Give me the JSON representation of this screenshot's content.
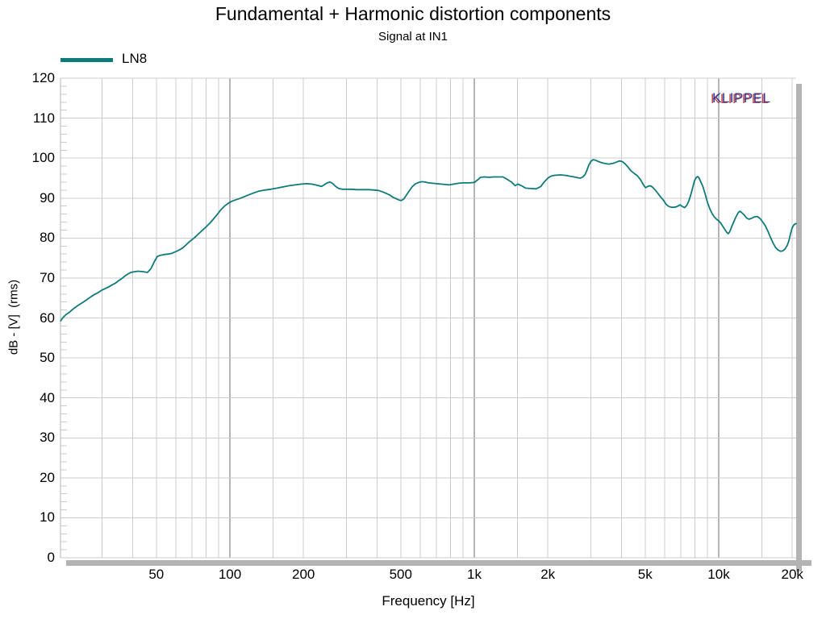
{
  "header": {
    "title": "Fundamental + Harmonic distortion components",
    "subtitle": "Signal at IN1"
  },
  "watermark": "KLIPPEL",
  "legend": {
    "items": [
      {
        "label": "LN8",
        "color": "#0e7b7b"
      }
    ]
  },
  "colors": {
    "series": "#0e7b7b",
    "grid_minor": "#cccccc",
    "grid_major_decade": "#b5b5b5",
    "axis_line": "#b5b5b5",
    "shadow_bar": "#b3b3b3",
    "watermark_blue": "#2b3a9c",
    "watermark_red": "#c43434",
    "text": "#000000"
  },
  "chart_data": {
    "type": "line",
    "title": "Fundamental + Harmonic distortion components",
    "subtitle": "Signal at IN1",
    "xlabel": "Frequency [Hz]",
    "ylabel": "dB - [V]  (rms)",
    "x_scale": "log",
    "xlim": [
      20.3,
      20750
    ],
    "ylim": [
      0,
      120
    ],
    "grid": true,
    "legend_position": "top-left",
    "y_major_ticks": [
      0,
      10,
      20,
      30,
      40,
      50,
      60,
      70,
      80,
      90,
      100,
      110,
      120
    ],
    "y_minor_step": 2,
    "x_labeled_ticks": [
      {
        "f": 50,
        "label": "50"
      },
      {
        "f": 100,
        "label": "100"
      },
      {
        "f": 200,
        "label": "200"
      },
      {
        "f": 500,
        "label": "500"
      },
      {
        "f": 1000,
        "label": "1k"
      },
      {
        "f": 2000,
        "label": "2k"
      },
      {
        "f": 5000,
        "label": "5k"
      },
      {
        "f": 10000,
        "label": "10k"
      },
      {
        "f": 20000,
        "label": "20k"
      }
    ],
    "x_gridlines": [
      30,
      40,
      50,
      60,
      70,
      80,
      90,
      100,
      150,
      200,
      300,
      400,
      500,
      600,
      700,
      800,
      900,
      1000,
      1500,
      2000,
      3000,
      4000,
      5000,
      6000,
      7000,
      8000,
      9000,
      10000,
      15000,
      20000
    ],
    "x_decade_gridlines": [
      100,
      1000,
      10000
    ],
    "series": [
      {
        "name": "LN8",
        "color": "#0e7b7b",
        "points": [
          [
            20.3,
            59.3
          ],
          [
            20.7,
            60.0
          ],
          [
            21.3,
            60.8
          ],
          [
            22,
            61.4
          ],
          [
            23,
            62.4
          ],
          [
            24,
            63.2
          ],
          [
            25,
            63.9
          ],
          [
            26,
            64.6
          ],
          [
            27,
            65.3
          ],
          [
            28,
            65.9
          ],
          [
            29,
            66.4
          ],
          [
            30,
            67.0
          ],
          [
            31,
            67.4
          ],
          [
            32,
            67.8
          ],
          [
            33,
            68.3
          ],
          [
            34,
            68.7
          ],
          [
            35,
            69.3
          ],
          [
            36,
            69.8
          ],
          [
            37,
            70.4
          ],
          [
            38,
            70.9
          ],
          [
            39,
            71.3
          ],
          [
            40,
            71.5
          ],
          [
            42,
            71.7
          ],
          [
            44,
            71.6
          ],
          [
            46,
            71.4
          ],
          [
            47.5,
            72.3
          ],
          [
            49,
            74.0
          ],
          [
            50.5,
            75.4
          ],
          [
            52,
            75.7
          ],
          [
            54,
            75.9
          ],
          [
            56,
            76.0
          ],
          [
            58,
            76.2
          ],
          [
            60,
            76.6
          ],
          [
            62,
            77.0
          ],
          [
            64,
            77.5
          ],
          [
            66,
            78.2
          ],
          [
            68,
            79.0
          ],
          [
            70,
            79.6
          ],
          [
            72,
            80.2
          ],
          [
            74,
            80.9
          ],
          [
            77,
            81.9
          ],
          [
            80,
            82.8
          ],
          [
            83,
            83.8
          ],
          [
            86,
            84.9
          ],
          [
            89,
            86.0
          ],
          [
            92,
            87.1
          ],
          [
            95,
            88.0
          ],
          [
            98,
            88.6
          ],
          [
            101,
            89.1
          ],
          [
            105,
            89.5
          ],
          [
            110,
            89.9
          ],
          [
            117,
            90.6
          ],
          [
            124,
            91.2
          ],
          [
            131,
            91.7
          ],
          [
            139,
            92.0
          ],
          [
            147,
            92.2
          ],
          [
            156,
            92.5
          ],
          [
            165,
            92.8
          ],
          [
            175,
            93.1
          ],
          [
            185,
            93.3
          ],
          [
            196,
            93.5
          ],
          [
            207,
            93.6
          ],
          [
            216,
            93.5
          ],
          [
            224,
            93.3
          ],
          [
            231,
            93.1
          ],
          [
            237,
            92.9
          ],
          [
            243,
            93.3
          ],
          [
            250,
            93.8
          ],
          [
            257,
            94.0
          ],
          [
            264,
            93.6
          ],
          [
            271,
            92.9
          ],
          [
            279,
            92.4
          ],
          [
            288,
            92.2
          ],
          [
            300,
            92.2
          ],
          [
            315,
            92.2
          ],
          [
            330,
            92.1
          ],
          [
            350,
            92.1
          ],
          [
            370,
            92.1
          ],
          [
            390,
            92.0
          ],
          [
            405,
            91.9
          ],
          [
            420,
            91.6
          ],
          [
            435,
            91.2
          ],
          [
            450,
            90.8
          ],
          [
            465,
            90.2
          ],
          [
            480,
            89.8
          ],
          [
            492,
            89.5
          ],
          [
            503,
            89.4
          ],
          [
            515,
            89.8
          ],
          [
            528,
            90.8
          ],
          [
            542,
            91.8
          ],
          [
            558,
            92.9
          ],
          [
            575,
            93.6
          ],
          [
            592,
            93.9
          ],
          [
            610,
            94.1
          ],
          [
            628,
            94.0
          ],
          [
            650,
            93.8
          ],
          [
            675,
            93.7
          ],
          [
            700,
            93.6
          ],
          [
            730,
            93.5
          ],
          [
            760,
            93.4
          ],
          [
            790,
            93.3
          ],
          [
            825,
            93.5
          ],
          [
            860,
            93.7
          ],
          [
            900,
            93.8
          ],
          [
            950,
            93.8
          ],
          [
            1000,
            93.9
          ],
          [
            1030,
            94.5
          ],
          [
            1060,
            95.2
          ],
          [
            1100,
            95.3
          ],
          [
            1150,
            95.2
          ],
          [
            1200,
            95.3
          ],
          [
            1260,
            95.3
          ],
          [
            1310,
            95.3
          ],
          [
            1360,
            94.7
          ],
          [
            1420,
            94.0
          ],
          [
            1470,
            93.1
          ],
          [
            1510,
            93.5
          ],
          [
            1560,
            93.1
          ],
          [
            1620,
            92.5
          ],
          [
            1700,
            92.4
          ],
          [
            1790,
            92.3
          ],
          [
            1870,
            92.9
          ],
          [
            1930,
            94.0
          ],
          [
            2000,
            95.0
          ],
          [
            2060,
            95.5
          ],
          [
            2130,
            95.7
          ],
          [
            2250,
            95.8
          ],
          [
            2350,
            95.7
          ],
          [
            2450,
            95.5
          ],
          [
            2560,
            95.3
          ],
          [
            2650,
            95.1
          ],
          [
            2720,
            95.0
          ],
          [
            2780,
            95.3
          ],
          [
            2840,
            95.9
          ],
          [
            2890,
            97.0
          ],
          [
            2940,
            98.2
          ],
          [
            3000,
            99.2
          ],
          [
            3060,
            99.6
          ],
          [
            3120,
            99.5
          ],
          [
            3200,
            99.2
          ],
          [
            3300,
            98.9
          ],
          [
            3400,
            98.7
          ],
          [
            3550,
            98.5
          ],
          [
            3700,
            98.7
          ],
          [
            3820,
            99.0
          ],
          [
            3930,
            99.3
          ],
          [
            4040,
            99.1
          ],
          [
            4150,
            98.5
          ],
          [
            4260,
            97.7
          ],
          [
            4380,
            96.8
          ],
          [
            4500,
            96.2
          ],
          [
            4650,
            95.6
          ],
          [
            4800,
            94.5
          ],
          [
            4920,
            93.3
          ],
          [
            5020,
            92.6
          ],
          [
            5120,
            92.9
          ],
          [
            5230,
            93.1
          ],
          [
            5350,
            92.8
          ],
          [
            5500,
            92.0
          ],
          [
            5650,
            91.1
          ],
          [
            5800,
            90.2
          ],
          [
            5950,
            89.4
          ],
          [
            6100,
            88.4
          ],
          [
            6250,
            87.9
          ],
          [
            6400,
            87.7
          ],
          [
            6550,
            87.7
          ],
          [
            6700,
            87.8
          ],
          [
            6850,
            88.1
          ],
          [
            6950,
            88.3
          ],
          [
            7100,
            87.9
          ],
          [
            7250,
            87.6
          ],
          [
            7400,
            88.2
          ],
          [
            7550,
            89.3
          ],
          [
            7700,
            91.0
          ],
          [
            7850,
            92.9
          ],
          [
            7970,
            94.4
          ],
          [
            8100,
            95.2
          ],
          [
            8210,
            95.4
          ],
          [
            8320,
            95.0
          ],
          [
            8450,
            94.0
          ],
          [
            8600,
            93.0
          ],
          [
            8800,
            91.0
          ],
          [
            9000,
            88.9
          ],
          [
            9200,
            87.3
          ],
          [
            9400,
            86.1
          ],
          [
            9600,
            85.3
          ],
          [
            9800,
            84.7
          ],
          [
            10000,
            84.3
          ],
          [
            10200,
            83.7
          ],
          [
            10400,
            82.9
          ],
          [
            10600,
            82.1
          ],
          [
            10800,
            81.4
          ],
          [
            10950,
            81.1
          ],
          [
            11100,
            81.6
          ],
          [
            11400,
            83.4
          ],
          [
            11700,
            85.0
          ],
          [
            12000,
            86.3
          ],
          [
            12200,
            86.7
          ],
          [
            12400,
            86.4
          ],
          [
            12700,
            85.8
          ],
          [
            13000,
            85.0
          ],
          [
            13300,
            84.7
          ],
          [
            13600,
            84.9
          ],
          [
            14000,
            85.3
          ],
          [
            14400,
            85.4
          ],
          [
            14800,
            84.8
          ],
          [
            15100,
            84.1
          ],
          [
            15500,
            83.1
          ],
          [
            15900,
            81.7
          ],
          [
            16300,
            80.1
          ],
          [
            16700,
            78.7
          ],
          [
            17100,
            77.6
          ],
          [
            17500,
            77.0
          ],
          [
            17900,
            76.7
          ],
          [
            18300,
            76.8
          ],
          [
            18700,
            77.3
          ],
          [
            19100,
            78.3
          ],
          [
            19400,
            79.5
          ],
          [
            19700,
            81.2
          ],
          [
            20000,
            82.6
          ],
          [
            20300,
            83.3
          ],
          [
            20600,
            83.6
          ],
          [
            20750,
            83.6
          ]
        ]
      }
    ]
  }
}
